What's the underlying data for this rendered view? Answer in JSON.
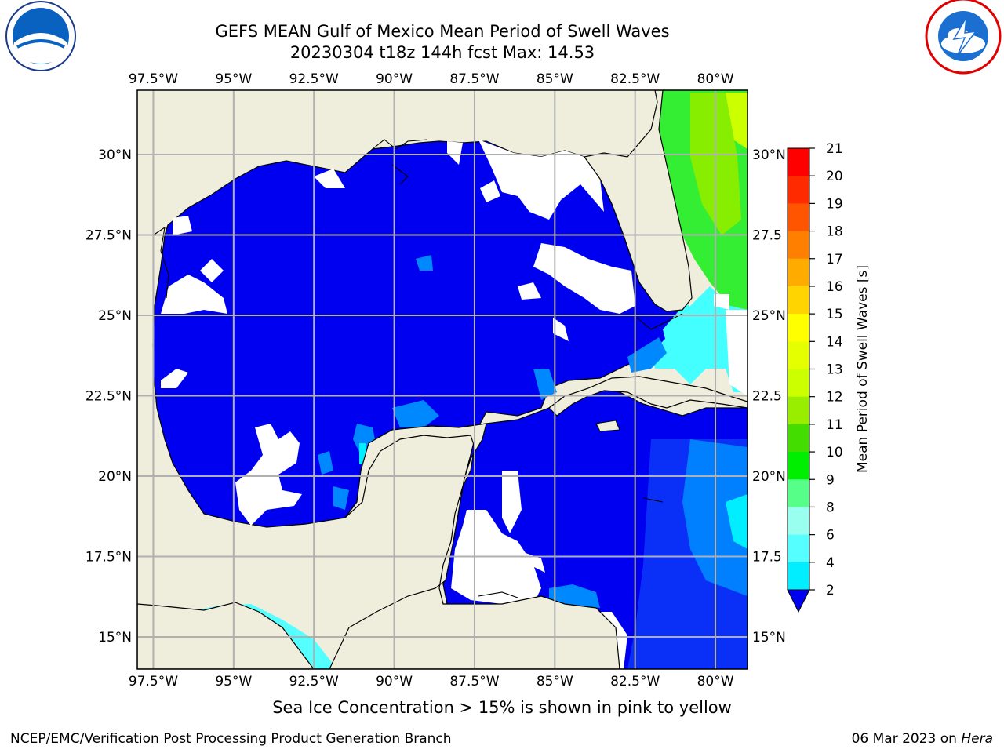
{
  "title": {
    "line1": "GEFS MEAN Gulf of Mexico Mean Period of Swell Waves",
    "line2": "20230304 t18z 144h fcst   Max: 14.53"
  },
  "logos": {
    "left": "noaa-logo",
    "right": "nws-logo"
  },
  "map": {
    "lon_range": [
      -98,
      -79
    ],
    "lat_range": [
      14,
      32
    ],
    "lon_ticks": [
      -97.5,
      -95,
      -92.5,
      -90,
      -87.5,
      -85,
      -82.5,
      -80
    ],
    "lon_labels": [
      "97.5°W",
      "95°W",
      "92.5°W",
      "90°W",
      "87.5°W",
      "85°W",
      "82.5°W",
      "80°W"
    ],
    "lat_ticks": [
      30,
      27.5,
      25,
      22.5,
      20,
      17.5,
      15
    ],
    "lat_labels_left": [
      "30°N",
      "27.5°N",
      "25°N",
      "22.5°N",
      "20°N",
      "17.5°N",
      "15°N"
    ],
    "lat_labels_right": [
      "30°N",
      "27.5",
      "25°N",
      "22.5",
      "20°N",
      "17.5",
      "15°N"
    ],
    "colors": {
      "land": "#efeddc",
      "ocean_low": "#0000f0",
      "grid": "#b0b0b0"
    }
  },
  "colorbar": {
    "label": "Mean Period of Swell Waves [s]",
    "ticks": [
      "21",
      "20",
      "19",
      "18",
      "17",
      "16",
      "15",
      "14",
      "13",
      "12",
      "11",
      "10",
      "9",
      "8",
      "6",
      "4",
      "2"
    ],
    "colors": [
      "#ff0000",
      "#ff2a00",
      "#ff5500",
      "#ff8000",
      "#ffab00",
      "#ffd400",
      "#ffff00",
      "#e6ff00",
      "#ccff00",
      "#99ee00",
      "#44dd00",
      "#00ee00",
      "#55ff88",
      "#99ffee",
      "#55ffff",
      "#00eeff",
      "#0088ff"
    ],
    "extend_color": "#0000f0"
  },
  "footnote": "Sea Ice Concentration > 15% is shown in pink to yellow",
  "credit_left": "NCEP/EMC/Verification Post Processing Product Generation Branch",
  "credit_right_prefix": "06 Mar 2023 on ",
  "credit_right_host": "Hera"
}
